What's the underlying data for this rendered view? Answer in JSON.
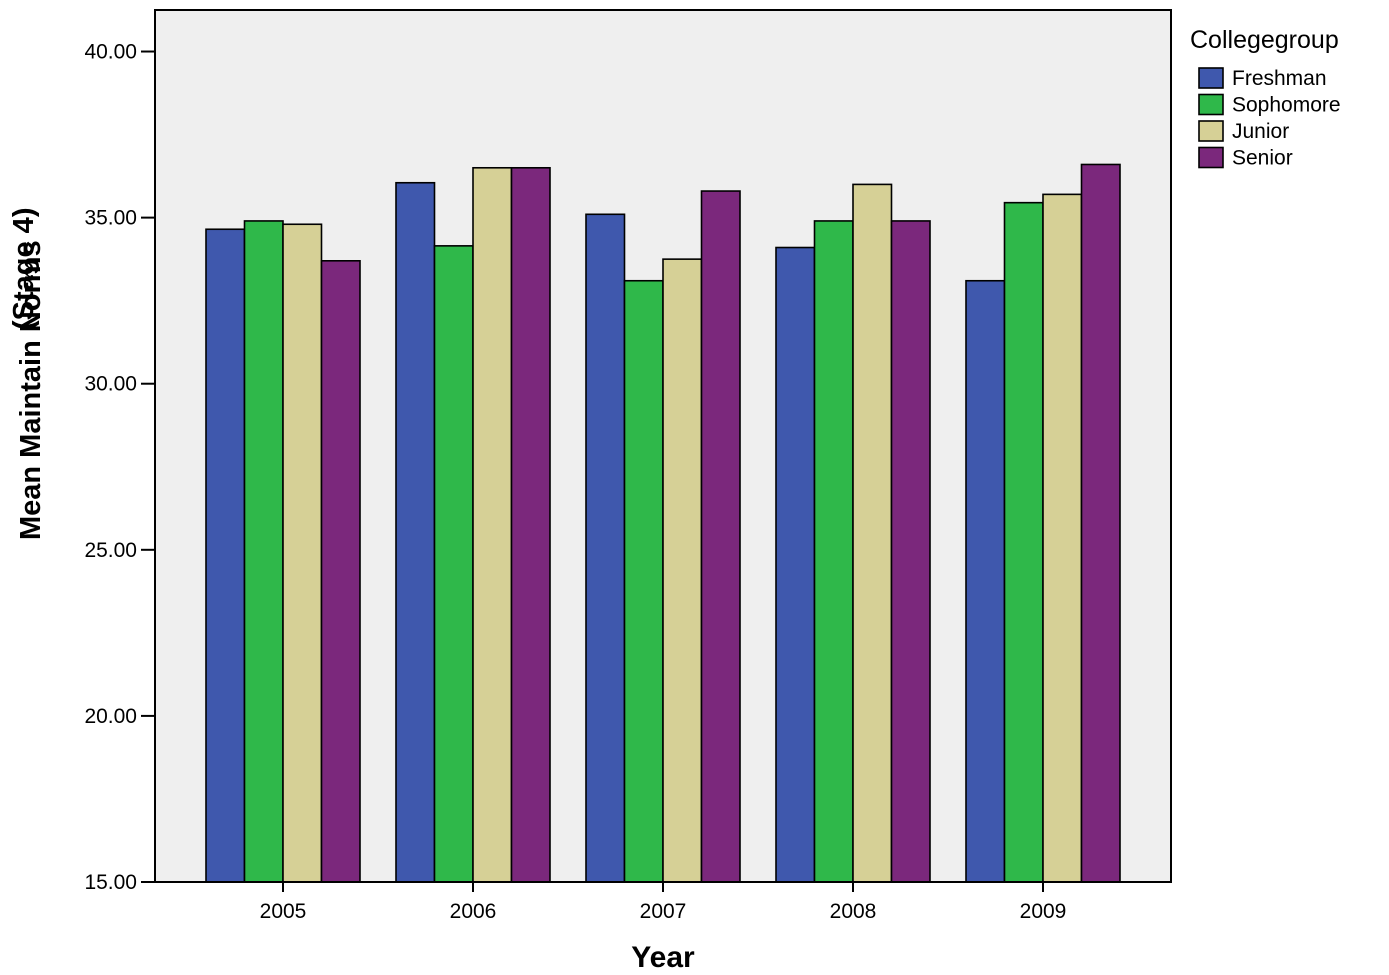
{
  "chart_data": {
    "type": "bar",
    "xlabel": "Year",
    "ylabel_parts": [
      "Mean Maintain Norms",
      "(Stage 4)"
    ],
    "categories": [
      "2005",
      "2006",
      "2007",
      "2008",
      "2009"
    ],
    "ylim": [
      15,
      41.25
    ],
    "yticks": [
      15,
      20,
      25,
      30,
      35,
      40
    ],
    "ytick_labels": [
      "15.00",
      "20.00",
      "25.00",
      "30.00",
      "35.00",
      "40.00"
    ],
    "grid": false,
    "legend": {
      "title": "Collegegroup",
      "position": "right"
    },
    "series": [
      {
        "name": "Freshman",
        "color": "#3f58ad",
        "values": [
          34.65,
          36.05,
          35.1,
          34.1,
          33.1
        ]
      },
      {
        "name": "Sophomore",
        "color": "#2fb84a",
        "values": [
          34.9,
          34.15,
          33.1,
          34.9,
          35.45
        ]
      },
      {
        "name": "Junior",
        "color": "#d6d096",
        "values": [
          34.8,
          36.5,
          33.75,
          36.0,
          35.7
        ]
      },
      {
        "name": "Senior",
        "color": "#7b287c",
        "values": [
          33.7,
          36.5,
          35.8,
          34.9,
          36.6
        ]
      }
    ]
  }
}
